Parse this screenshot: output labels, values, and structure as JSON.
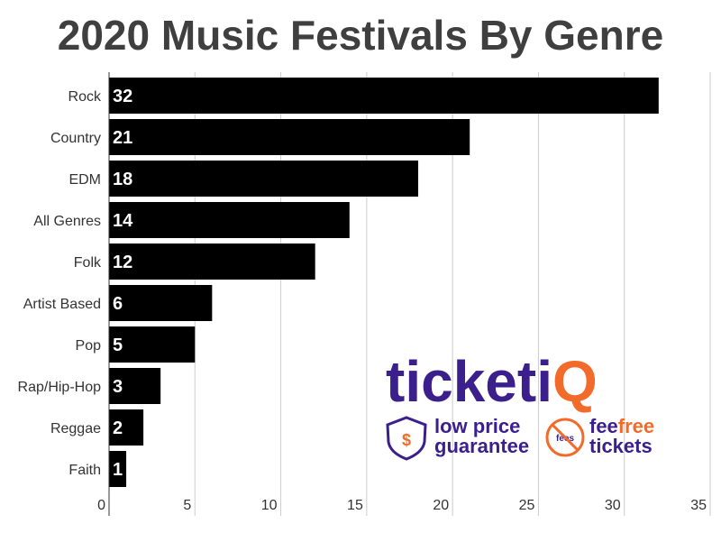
{
  "colors": {
    "bar": "#000000",
    "grid": "#cccccc",
    "logo_primary": "#3b1f8c",
    "logo_accent": "#f26b2a"
  },
  "chart_data": {
    "type": "bar",
    "orientation": "horizontal",
    "title": "2020 Music Festivals By Genre",
    "categories": [
      "Rock",
      "Country",
      "EDM",
      "All Genres",
      "Folk",
      "Artist Based",
      "Pop",
      "Rap/Hip-Hop",
      "Reggae",
      "Faith"
    ],
    "values": [
      32,
      21,
      18,
      14,
      12,
      6,
      5,
      3,
      2,
      1
    ],
    "xlim": [
      0,
      35
    ],
    "xticks": [
      0,
      5,
      10,
      15,
      20,
      25,
      30,
      35
    ],
    "grid": true,
    "data_labels": true
  },
  "watermark": {
    "brand_main": "ticketi",
    "brand_q": "Q",
    "badge1_line1": "low price",
    "badge1_line2": "guarantee",
    "badge1_icon": "shield-dollar-icon",
    "badge2_line1_a": "fee",
    "badge2_line1_b": "free",
    "badge2_line2": "tickets",
    "badge2_icon": "no-fees-icon",
    "badge2_icon_text": "fees"
  }
}
